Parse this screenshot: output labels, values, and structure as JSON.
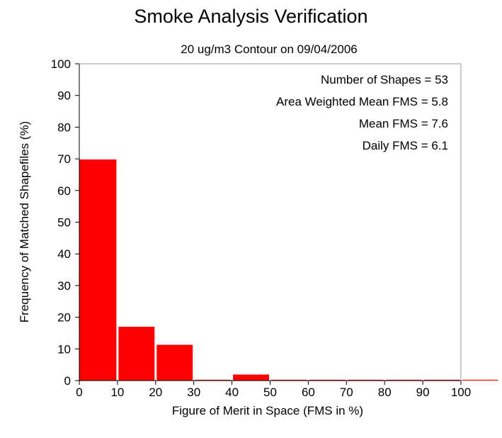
{
  "chart_data": {
    "type": "bar",
    "title": "Smoke Analysis Verification",
    "subtitle": "20 ug/m3 Contour on 09/04/2006",
    "xlabel": "Figure of Merit in Space (FMS in %)",
    "ylabel": "Frequency of Matched Shapefiles (%)",
    "xlim": [
      0,
      110
    ],
    "ylim": [
      0,
      100
    ],
    "x_ticks": [
      0,
      10,
      20,
      30,
      40,
      50,
      60,
      70,
      80,
      90,
      100
    ],
    "y_ticks": [
      0,
      10,
      20,
      30,
      40,
      50,
      60,
      70,
      80,
      90,
      100
    ],
    "bins": [
      {
        "from": 0,
        "to": 10,
        "value": 69.8
      },
      {
        "from": 10,
        "to": 20,
        "value": 17.0
      },
      {
        "from": 20,
        "to": 30,
        "value": 11.3
      },
      {
        "from": 30,
        "to": 40,
        "value": 0
      },
      {
        "from": 40,
        "to": 50,
        "value": 1.9
      },
      {
        "from": 50,
        "to": 60,
        "value": 0
      },
      {
        "from": 60,
        "to": 70,
        "value": 0
      },
      {
        "from": 70,
        "to": 80,
        "value": 0
      },
      {
        "from": 80,
        "to": 90,
        "value": 0
      },
      {
        "from": 90,
        "to": 100,
        "value": 0
      },
      {
        "from": 100,
        "to": 110,
        "value": 0
      }
    ],
    "annotations": [
      "Number of Shapes = 53",
      "Area Weighted Mean FMS = 5.8",
      "Mean FMS = 7.6",
      "Daily FMS = 6.1"
    ],
    "grid": false,
    "bar_color": "#ff0000"
  }
}
